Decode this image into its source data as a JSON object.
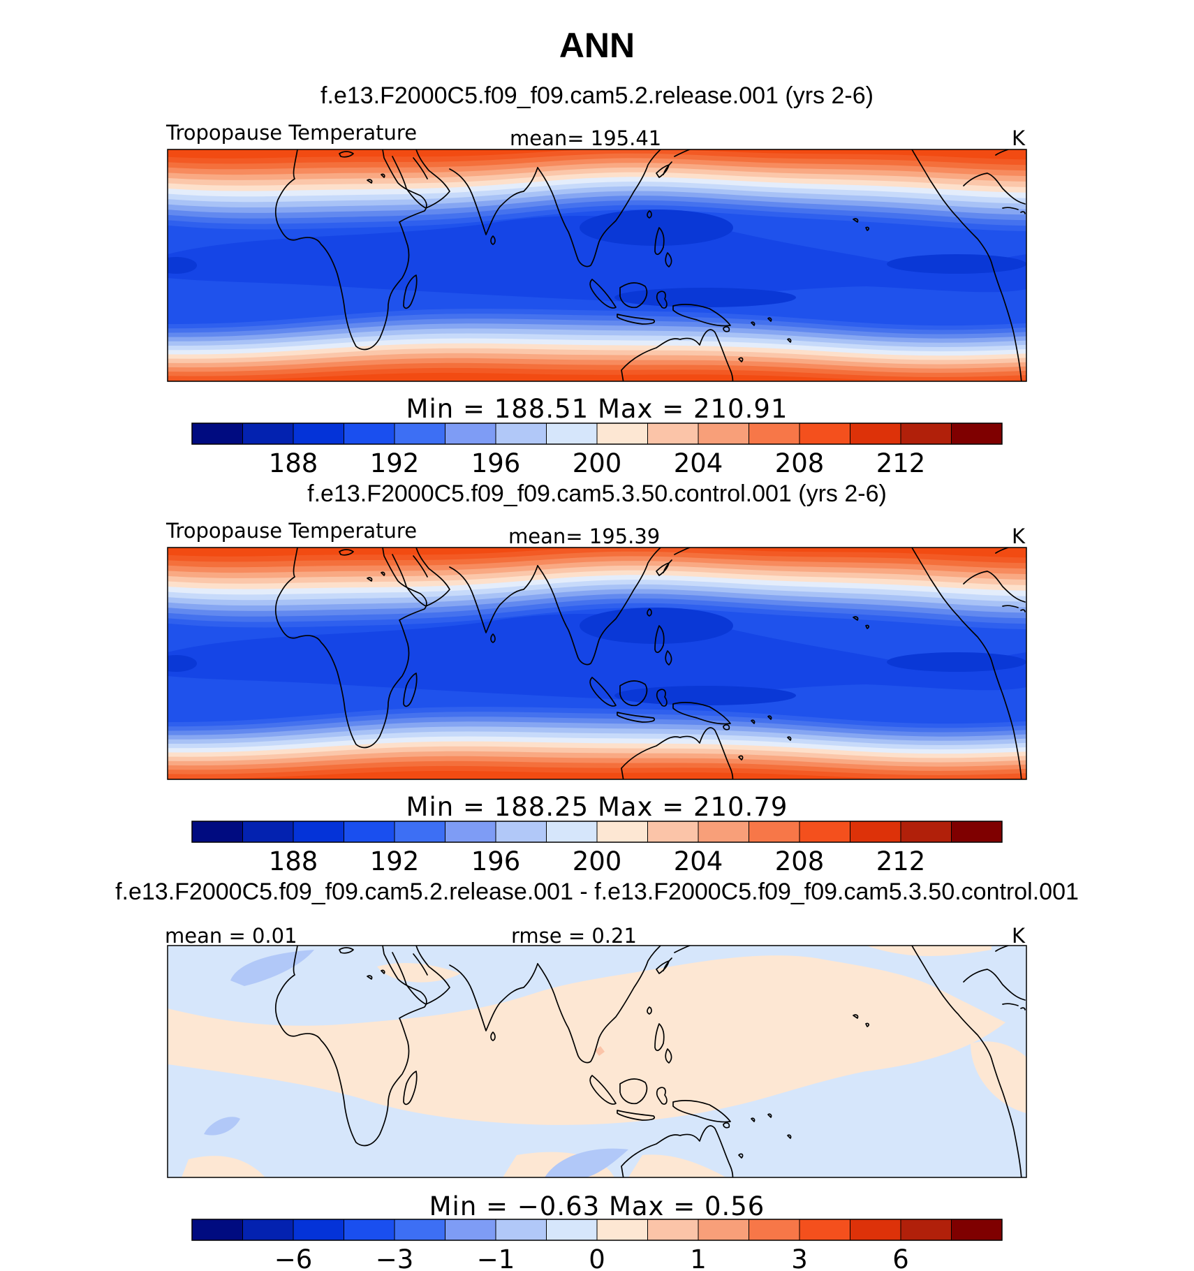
{
  "figure": {
    "title": "ANN",
    "units": "K"
  },
  "chart_data": [
    {
      "type": "heatmap",
      "id": "test",
      "case_title": "f.e13.F2000C5.f09_f09.cam5.2.release.001 (yrs 2-6)",
      "variable": "Tropopause Temperature",
      "stat_left": "mean=  195.41",
      "units": "K",
      "range_label": "Min  =  188.51  Max  =  210.91",
      "min": 188.51,
      "max": 210.91,
      "mean": 195.41,
      "colorbar_levels": [
        186,
        188,
        190,
        192,
        194,
        196,
        198,
        200,
        202,
        204,
        206,
        208,
        210,
        212,
        214
      ],
      "colorbar_tick_labels": [
        "188",
        "192",
        "196",
        "200",
        "204",
        "208",
        "212"
      ],
      "colorbar_tick_values": [
        188,
        192,
        196,
        200,
        204,
        208,
        212
      ]
    },
    {
      "type": "heatmap",
      "id": "control",
      "case_title": "f.e13.F2000C5.f09_f09.cam5.3.50.control.001 (yrs 2-6)",
      "variable": "Tropopause Temperature",
      "stat_left": "mean=  195.39",
      "units": "K",
      "range_label": "Min  =  188.25  Max  =  210.79",
      "min": 188.25,
      "max": 210.79,
      "mean": 195.39,
      "colorbar_levels": [
        186,
        188,
        190,
        192,
        194,
        196,
        198,
        200,
        202,
        204,
        206,
        208,
        210,
        212,
        214
      ],
      "colorbar_tick_labels": [
        "188",
        "192",
        "196",
        "200",
        "204",
        "208",
        "212"
      ],
      "colorbar_tick_values": [
        188,
        192,
        196,
        200,
        204,
        208,
        212
      ]
    },
    {
      "type": "heatmap",
      "id": "difference",
      "case_title": "f.e13.F2000C5.f09_f09.cam5.2.release.001 - f.e13.F2000C5.f09_f09.cam5.3.50.control.001",
      "stat_left": "mean  =    0.01",
      "stat_mid": "rmse  =    0.21",
      "units": "K",
      "range_label": "Min  =   −0.63  Max  =    0.56",
      "min": -0.63,
      "max": 0.56,
      "mean": 0.01,
      "rmse": 0.21,
      "colorbar_tick_labels": [
        "−6",
        "−3",
        "−1",
        "0",
        "1",
        "3",
        "6"
      ]
    }
  ],
  "colormap": [
    "#000b80",
    "#0322b0",
    "#0433d8",
    "#1a4fef",
    "#3d6ff4",
    "#7e9cf5",
    "#b1c8f8",
    "#d6e6fb",
    "#fde7d3",
    "#fbc4a8",
    "#f89f79",
    "#f77748",
    "#f4501d",
    "#dd3209",
    "#b1200a",
    "#7f0000"
  ]
}
